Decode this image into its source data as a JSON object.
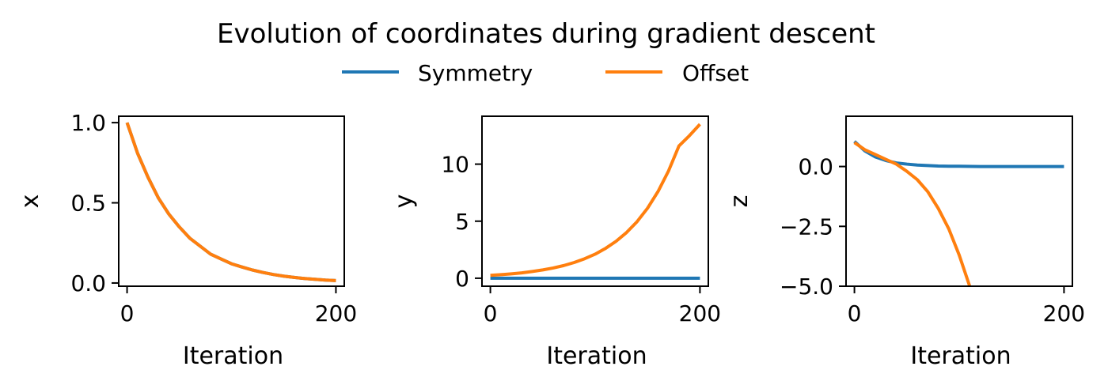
{
  "title": "Evolution of coordinates during gradient descent",
  "legend": {
    "placement": "top-center",
    "entries": [
      {
        "label": "Symmetry",
        "color": "#1f77b4"
      },
      {
        "label": "Offset",
        "color": "#ff7f0e"
      }
    ]
  },
  "chart_data": [
    {
      "type": "line",
      "xlabel": "Iteration",
      "ylabel": "x",
      "xlim": [
        -8,
        208
      ],
      "ylim": [
        -0.02,
        1.04
      ],
      "xticks": [
        0,
        200
      ],
      "xtick_labels": [
        "0",
        "200"
      ],
      "yticks": [
        0.0,
        0.5,
        1.0
      ],
      "ytick_labels": [
        "0.0",
        "0.5",
        "1.0"
      ],
      "x": [
        0,
        10,
        20,
        30,
        40,
        50,
        60,
        70,
        80,
        90,
        100,
        110,
        120,
        130,
        140,
        150,
        160,
        170,
        180,
        190,
        200
      ],
      "series": [
        {
          "name": "Symmetry",
          "color": "#1f77b4",
          "values": [
            1.0,
            0.81,
            0.66,
            0.53,
            0.43,
            0.35,
            0.28,
            0.23,
            0.18,
            0.15,
            0.12,
            0.1,
            0.081,
            0.066,
            0.053,
            0.043,
            0.035,
            0.028,
            0.023,
            0.018,
            0.015
          ]
        },
        {
          "name": "Offset",
          "color": "#ff7f0e",
          "values": [
            1.0,
            0.81,
            0.66,
            0.53,
            0.43,
            0.35,
            0.28,
            0.23,
            0.18,
            0.15,
            0.12,
            0.1,
            0.081,
            0.066,
            0.053,
            0.043,
            0.035,
            0.028,
            0.023,
            0.018,
            0.015
          ]
        }
      ]
    },
    {
      "type": "line",
      "xlabel": "Iteration",
      "ylabel": "y",
      "xlim": [
        -8,
        208
      ],
      "ylim": [
        -0.7,
        14.2
      ],
      "xticks": [
        0,
        200
      ],
      "xtick_labels": [
        "0",
        "200"
      ],
      "yticks": [
        0,
        5,
        10
      ],
      "ytick_labels": [
        "0",
        "5",
        "10"
      ],
      "x": [
        0,
        10,
        20,
        30,
        40,
        50,
        60,
        70,
        80,
        90,
        100,
        110,
        120,
        130,
        140,
        150,
        160,
        170,
        180,
        190,
        200
      ],
      "series": [
        {
          "name": "Symmetry",
          "color": "#1f77b4",
          "values": [
            0,
            0,
            0,
            0,
            0,
            0,
            0,
            0,
            0,
            0,
            0,
            0,
            0,
            0,
            0,
            0,
            0,
            0,
            0,
            0,
            0
          ]
        },
        {
          "name": "Offset",
          "color": "#ff7f0e",
          "values": [
            0.25,
            0.31,
            0.38,
            0.47,
            0.59,
            0.73,
            0.9,
            1.11,
            1.38,
            1.71,
            2.11,
            2.62,
            3.24,
            4.01,
            4.96,
            6.14,
            7.6,
            9.4,
            11.6,
            12.5,
            13.5
          ]
        }
      ]
    },
    {
      "type": "line",
      "xlabel": "Iteration",
      "ylabel": "z",
      "xlim": [
        -8,
        208
      ],
      "ylim": [
        -5.0,
        2.1
      ],
      "xticks": [
        0,
        200
      ],
      "xtick_labels": [
        "0",
        "200"
      ],
      "yticks": [
        -5.0,
        -2.5,
        0.0
      ],
      "ytick_labels": [
        "−5.0",
        "−2.5",
        "0.0"
      ],
      "series": [
        {
          "name": "Symmetry",
          "color": "#1f77b4",
          "x": [
            0,
            10,
            20,
            30,
            40,
            50,
            60,
            70,
            80,
            90,
            100,
            120,
            140,
            160,
            180,
            200
          ],
          "values": [
            1.05,
            0.65,
            0.4,
            0.25,
            0.15,
            0.1,
            0.06,
            0.04,
            0.02,
            0.01,
            0.01,
            0.0,
            0.0,
            0.0,
            0.0,
            0.0
          ]
        },
        {
          "name": "Offset",
          "color": "#ff7f0e",
          "x": [
            0,
            10,
            20,
            30,
            40,
            50,
            60,
            70,
            80,
            90,
            100,
            110
          ],
          "values": [
            1.0,
            0.7,
            0.5,
            0.3,
            0.1,
            -0.2,
            -0.55,
            -1.05,
            -1.75,
            -2.6,
            -3.7,
            -5.0
          ]
        }
      ]
    }
  ]
}
